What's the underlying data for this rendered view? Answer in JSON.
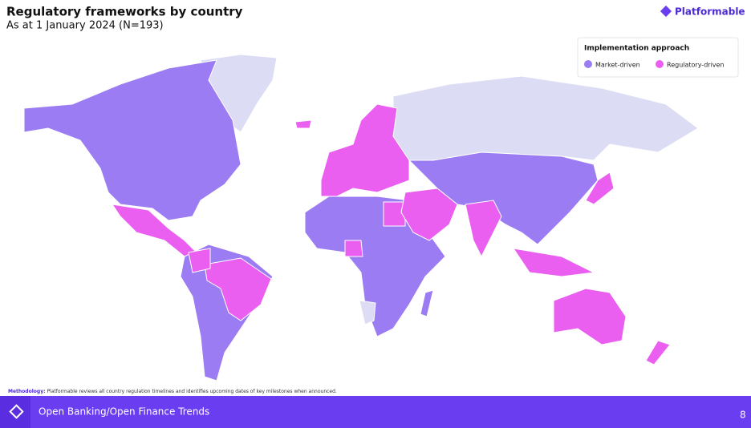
{
  "header": {
    "title": "Regulatory frameworks by country",
    "subtitle": "As at 1 January 2024 (N=193)"
  },
  "logo": {
    "text": "Platformable"
  },
  "legend": {
    "title": "Implementation approach",
    "items": [
      {
        "label": "Market-driven",
        "color": "#9b7cf2"
      },
      {
        "label": "Regulatory-driven",
        "color": "#ea5ff0"
      }
    ]
  },
  "methodology": {
    "label": "Methodology:",
    "text": "Platformable reviews all country regulation timelines and identifies upcoming dates of key milestones when announced."
  },
  "footer": {
    "title": "Open Banking/Open Finance Trends",
    "page": "8"
  }
}
